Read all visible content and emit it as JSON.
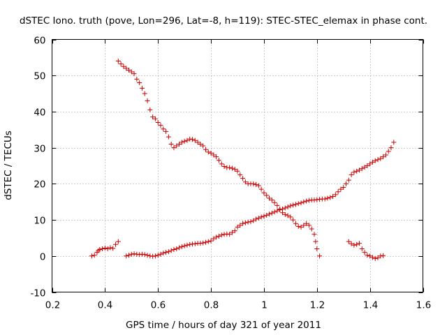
{
  "chart_data": {
    "type": "scatter",
    "title": "dSTEC Iono. truth (pove, Lon=296, Lat=-8, h=119): STEC-STEC_elemax in phase cont.",
    "xlabel": "GPS time / hours of day 321 of year 2011",
    "ylabel": "dSTEC  / TECUs",
    "xlim": [
      0.2,
      1.6
    ],
    "ylim": [
      -10,
      60
    ],
    "xticks": [
      0.2,
      0.4,
      0.6,
      0.8,
      1,
      1.2,
      1.4,
      1.6
    ],
    "yticks": [
      -10,
      0,
      10,
      20,
      30,
      40,
      50,
      60
    ],
    "xtick_labels": [
      "0.2",
      "0.4",
      "0.6",
      "0.8",
      "1",
      "1.2",
      "1.4",
      "1.6"
    ],
    "ytick_labels": [
      "-10",
      "0",
      "10",
      "20",
      "30",
      "40",
      "50",
      "60"
    ],
    "grid": true,
    "marker": "+",
    "color": "#cc0000",
    "series": [
      {
        "points": [
          [
            0.35,
            0.0
          ],
          [
            0.36,
            0.2
          ],
          [
            0.37,
            1.0
          ],
          [
            0.375,
            1.5
          ],
          [
            0.38,
            1.8
          ],
          [
            0.39,
            2.0
          ],
          [
            0.4,
            2.2
          ],
          [
            0.41,
            2.0
          ],
          [
            0.42,
            2.3
          ],
          [
            0.43,
            2.1
          ],
          [
            0.44,
            3.2
          ],
          [
            0.45,
            4.0
          ]
        ]
      },
      {
        "points": [
          [
            0.45,
            54.0
          ],
          [
            0.46,
            53.2
          ],
          [
            0.47,
            52.5
          ],
          [
            0.48,
            52.0
          ],
          [
            0.49,
            51.5
          ],
          [
            0.5,
            51.0
          ],
          [
            0.51,
            50.5
          ],
          [
            0.52,
            49.0
          ],
          [
            0.53,
            48.0
          ],
          [
            0.54,
            46.5
          ],
          [
            0.55,
            45.0
          ],
          [
            0.56,
            43.0
          ],
          [
            0.57,
            40.5
          ],
          [
            0.58,
            38.5
          ],
          [
            0.59,
            38.0
          ],
          [
            0.6,
            37.0
          ],
          [
            0.61,
            36.2
          ],
          [
            0.62,
            35.2
          ],
          [
            0.63,
            34.5
          ],
          [
            0.64,
            33.0
          ],
          [
            0.65,
            31.0
          ],
          [
            0.66,
            30.0
          ],
          [
            0.67,
            30.5
          ],
          [
            0.68,
            31.0
          ],
          [
            0.69,
            31.5
          ],
          [
            0.7,
            31.8
          ],
          [
            0.71,
            32.0
          ],
          [
            0.72,
            32.4
          ],
          [
            0.73,
            32.3
          ],
          [
            0.74,
            32.0
          ],
          [
            0.75,
            31.5
          ],
          [
            0.76,
            31.0
          ],
          [
            0.77,
            30.5
          ],
          [
            0.78,
            29.5
          ],
          [
            0.79,
            28.8
          ],
          [
            0.8,
            28.5
          ],
          [
            0.81,
            28.0
          ],
          [
            0.82,
            27.5
          ],
          [
            0.83,
            26.5
          ],
          [
            0.84,
            25.5
          ],
          [
            0.85,
            24.8
          ],
          [
            0.86,
            24.5
          ],
          [
            0.87,
            24.5
          ],
          [
            0.88,
            24.3
          ],
          [
            0.89,
            24.0
          ],
          [
            0.9,
            23.5
          ],
          [
            0.91,
            22.5
          ],
          [
            0.92,
            21.5
          ],
          [
            0.93,
            20.5
          ],
          [
            0.94,
            20.0
          ],
          [
            0.95,
            20.0
          ],
          [
            0.96,
            20.0
          ],
          [
            0.97,
            19.8
          ],
          [
            0.98,
            19.5
          ],
          [
            0.99,
            18.5
          ],
          [
            1.0,
            17.5
          ],
          [
            1.01,
            16.8
          ],
          [
            1.02,
            16.0
          ],
          [
            1.03,
            15.5
          ],
          [
            1.04,
            14.8
          ],
          [
            1.05,
            14.0
          ],
          [
            1.06,
            13.0
          ],
          [
            1.07,
            12.0
          ],
          [
            1.08,
            11.5
          ],
          [
            1.09,
            11.2
          ],
          [
            1.1,
            10.8
          ],
          [
            1.11,
            10.0
          ],
          [
            1.12,
            9.0
          ],
          [
            1.13,
            8.2
          ],
          [
            1.14,
            8.0
          ],
          [
            1.15,
            8.5
          ],
          [
            1.16,
            9.0
          ],
          [
            1.17,
            8.5
          ],
          [
            1.18,
            7.5
          ],
          [
            1.19,
            6.0
          ],
          [
            1.195,
            4.0
          ],
          [
            1.2,
            2.0
          ],
          [
            1.21,
            0.0
          ]
        ]
      },
      {
        "points": [
          [
            0.48,
            0.0
          ],
          [
            0.49,
            0.2
          ],
          [
            0.5,
            0.5
          ],
          [
            0.51,
            0.6
          ],
          [
            0.52,
            0.5
          ],
          [
            0.53,
            0.4
          ],
          [
            0.54,
            0.5
          ],
          [
            0.55,
            0.4
          ],
          [
            0.56,
            0.2
          ],
          [
            0.57,
            0.0
          ],
          [
            0.58,
            -0.1
          ],
          [
            0.59,
            0.0
          ],
          [
            0.6,
            0.2
          ],
          [
            0.61,
            0.5
          ],
          [
            0.62,
            0.8
          ],
          [
            0.63,
            1.0
          ],
          [
            0.64,
            1.2
          ],
          [
            0.65,
            1.5
          ],
          [
            0.66,
            1.8
          ],
          [
            0.67,
            2.0
          ],
          [
            0.68,
            2.3
          ],
          [
            0.69,
            2.6
          ],
          [
            0.7,
            2.8
          ],
          [
            0.71,
            3.0
          ],
          [
            0.72,
            3.2
          ],
          [
            0.73,
            3.3
          ],
          [
            0.74,
            3.4
          ],
          [
            0.75,
            3.5
          ],
          [
            0.76,
            3.5
          ],
          [
            0.77,
            3.6
          ],
          [
            0.78,
            3.8
          ],
          [
            0.79,
            4.0
          ],
          [
            0.8,
            4.2
          ],
          [
            0.81,
            4.8
          ],
          [
            0.82,
            5.2
          ],
          [
            0.83,
            5.5
          ],
          [
            0.84,
            5.8
          ],
          [
            0.85,
            6.0
          ],
          [
            0.86,
            6.1
          ],
          [
            0.87,
            6.0
          ],
          [
            0.88,
            6.5
          ],
          [
            0.89,
            7.0
          ],
          [
            0.9,
            8.0
          ],
          [
            0.91,
            8.5
          ],
          [
            0.92,
            9.0
          ],
          [
            0.93,
            9.2
          ],
          [
            0.94,
            9.4
          ],
          [
            0.95,
            9.5
          ],
          [
            0.96,
            9.8
          ],
          [
            0.97,
            10.2
          ],
          [
            0.98,
            10.5
          ],
          [
            0.99,
            10.8
          ],
          [
            1.0,
            11.0
          ],
          [
            1.01,
            11.3
          ],
          [
            1.02,
            11.6
          ],
          [
            1.03,
            11.9
          ],
          [
            1.04,
            12.2
          ],
          [
            1.05,
            12.5
          ],
          [
            1.06,
            12.8
          ],
          [
            1.07,
            13.0
          ],
          [
            1.08,
            13.3
          ],
          [
            1.09,
            13.6
          ],
          [
            1.1,
            13.9
          ],
          [
            1.11,
            14.1
          ],
          [
            1.12,
            14.3
          ],
          [
            1.13,
            14.5
          ],
          [
            1.14,
            14.7
          ],
          [
            1.15,
            15.0
          ],
          [
            1.16,
            15.2
          ],
          [
            1.17,
            15.4
          ],
          [
            1.18,
            15.5
          ],
          [
            1.19,
            15.5
          ],
          [
            1.2,
            15.6
          ],
          [
            1.21,
            15.7
          ],
          [
            1.22,
            15.8
          ],
          [
            1.23,
            15.8
          ],
          [
            1.24,
            16.0
          ],
          [
            1.25,
            16.2
          ],
          [
            1.26,
            16.5
          ],
          [
            1.27,
            17.0
          ],
          [
            1.28,
            17.8
          ],
          [
            1.29,
            18.5
          ],
          [
            1.3,
            19.0
          ],
          [
            1.31,
            20.0
          ],
          [
            1.32,
            21.0
          ],
          [
            1.33,
            22.5
          ],
          [
            1.34,
            23.2
          ],
          [
            1.35,
            23.5
          ],
          [
            1.36,
            23.8
          ],
          [
            1.37,
            24.2
          ],
          [
            1.38,
            24.6
          ],
          [
            1.39,
            25.0
          ],
          [
            1.4,
            25.5
          ],
          [
            1.41,
            26.0
          ],
          [
            1.42,
            26.4
          ],
          [
            1.43,
            26.7
          ],
          [
            1.44,
            27.0
          ],
          [
            1.45,
            27.5
          ],
          [
            1.46,
            28.0
          ],
          [
            1.47,
            29.0
          ],
          [
            1.48,
            30.0
          ],
          [
            1.49,
            31.5
          ]
        ]
      },
      {
        "points": [
          [
            1.32,
            4.0
          ],
          [
            1.33,
            3.4
          ],
          [
            1.34,
            3.0
          ],
          [
            1.35,
            3.2
          ],
          [
            1.36,
            3.5
          ],
          [
            1.37,
            2.0
          ],
          [
            1.38,
            1.0
          ],
          [
            1.39,
            0.2
          ],
          [
            1.4,
            0.0
          ],
          [
            1.41,
            -0.4
          ],
          [
            1.42,
            -0.7
          ],
          [
            1.43,
            -0.5
          ],
          [
            1.44,
            0.0
          ],
          [
            1.45,
            0.1
          ]
        ]
      }
    ]
  }
}
